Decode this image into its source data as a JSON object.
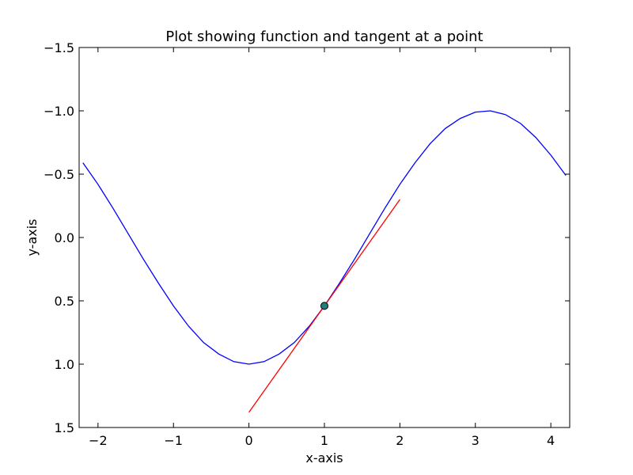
{
  "chart_data": {
    "type": "line",
    "title": "Plot showing function and tangent at a point",
    "xlabel": "x-axis",
    "ylabel": "y-axis",
    "xlim": [
      -2.25,
      4.25
    ],
    "ylim": [
      1.5,
      -1.5
    ],
    "y_axis_inverted": true,
    "grid": false,
    "xticks": [
      {
        "value": -2,
        "label": "−2"
      },
      {
        "value": -1,
        "label": "−1"
      },
      {
        "value": 0,
        "label": "0"
      },
      {
        "value": 1,
        "label": "1"
      },
      {
        "value": 2,
        "label": "2"
      },
      {
        "value": 3,
        "label": "3"
      },
      {
        "value": 4,
        "label": "4"
      }
    ],
    "yticks": [
      {
        "value": -1.5,
        "label": "−1.5"
      },
      {
        "value": -1.0,
        "label": "−1.0"
      },
      {
        "value": -0.5,
        "label": "−0.5"
      },
      {
        "value": 0.0,
        "label": "0.0"
      },
      {
        "value": 0.5,
        "label": "0.5"
      },
      {
        "value": 1.0,
        "label": "1.0"
      },
      {
        "value": 1.5,
        "label": "1.5"
      }
    ],
    "series": [
      {
        "kind": "function",
        "color": "#0000ff",
        "x": [
          -2.2,
          -2.0,
          -1.8,
          -1.6,
          -1.4,
          -1.2,
          -1.0,
          -0.8,
          -0.6,
          -0.4,
          -0.2,
          0.0,
          0.2,
          0.4,
          0.6,
          0.8,
          1.0,
          1.2,
          1.4,
          1.6,
          1.8,
          2.0,
          2.2,
          2.4,
          2.6,
          2.8,
          3.0,
          3.2,
          3.4,
          3.6,
          3.8,
          4.0,
          4.2
        ],
        "y": [
          -0.59,
          -0.42,
          -0.23,
          -0.03,
          0.17,
          0.36,
          0.54,
          0.7,
          0.83,
          0.92,
          0.98,
          1.0,
          0.98,
          0.92,
          0.83,
          0.7,
          0.54,
          0.36,
          0.17,
          -0.03,
          -0.23,
          -0.42,
          -0.59,
          -0.74,
          -0.86,
          -0.94,
          -0.99,
          -1.0,
          -0.97,
          -0.9,
          -0.79,
          -0.65,
          -0.49
        ]
      },
      {
        "kind": "tangent",
        "color": "#ff0000",
        "x": [
          0,
          2
        ],
        "y": [
          1.38,
          -0.3
        ]
      }
    ],
    "points": [
      {
        "x": 1.0,
        "y": 0.54,
        "color": "#1f7f7f"
      }
    ]
  }
}
